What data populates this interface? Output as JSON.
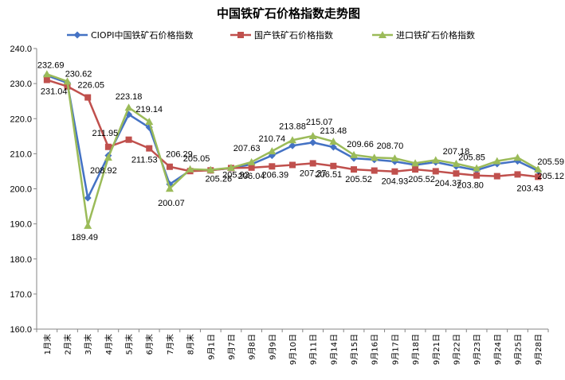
{
  "chart_data": {
    "type": "line",
    "title": "中国铁矿石价格指数走势图",
    "xlabel": "",
    "ylabel": "",
    "ylim": [
      160,
      240
    ],
    "y_ticks": [
      "160.0",
      "170.0",
      "180.0",
      "190.0",
      "200.0",
      "210.0",
      "220.0",
      "230.0",
      "240.0"
    ],
    "grid": "none",
    "legend_position": "top",
    "categories": [
      "1月末",
      "2月末",
      "3月末",
      "4月末",
      "5月末",
      "6月末",
      "7月末",
      "8月末",
      "9月1日",
      "9月7日",
      "9月8日",
      "9月9日",
      "9月10日",
      "9月11日",
      "9月14日",
      "9月15日",
      "9月16日",
      "9月17日",
      "9月18日",
      "9月21日",
      "9月22日",
      "9月23日",
      "9月24日",
      "9月25日",
      "9月28日"
    ],
    "series": [
      {
        "name": "CIOPI中国铁矿石价格指数",
        "color": "#4472C4",
        "marker": "diamond",
        "values": [
          232.3,
          230.2,
          197.4,
          209.5,
          221.2,
          217.5,
          201.3,
          205.2,
          205.3,
          205.9,
          207.0,
          209.5,
          212.3,
          213.2,
          211.9,
          208.7,
          208.3,
          207.8,
          206.8,
          207.6,
          206.4,
          205.3,
          207.1,
          207.9,
          205.12
        ]
      },
      {
        "name": "国产铁矿石价格指数",
        "color": "#C0504D",
        "marker": "square",
        "values": [
          231.04,
          229.2,
          226.05,
          211.95,
          214.0,
          211.53,
          206.29,
          205.05,
          205.26,
          205.92,
          206.04,
          206.39,
          206.8,
          207.27,
          206.51,
          205.52,
          205.2,
          204.93,
          205.52,
          205.0,
          204.37,
          203.8,
          203.6,
          204.1,
          203.43
        ]
      },
      {
        "name": "进口铁矿石价格指数",
        "color": "#9BBB59",
        "marker": "triangle",
        "values": [
          232.69,
          230.62,
          189.49,
          208.92,
          223.18,
          219.14,
          200.07,
          205.6,
          205.4,
          206.0,
          207.63,
          210.74,
          213.88,
          215.07,
          213.48,
          209.66,
          208.9,
          208.7,
          207.3,
          208.2,
          207.18,
          205.85,
          207.9,
          208.9,
          205.59
        ]
      }
    ],
    "data_labels": [
      {
        "text": "232.69",
        "series": 2,
        "index": 0
      },
      {
        "text": "231.04",
        "series": 1,
        "index": 0
      },
      {
        "text": "230.62",
        "series": 2,
        "index": 1
      },
      {
        "text": "226.05",
        "series": 1,
        "index": 2
      },
      {
        "text": "189.49",
        "series": 2,
        "index": 2
      },
      {
        "text": "211.95",
        "series": 1,
        "index": 3
      },
      {
        "text": "208.92",
        "series": 2,
        "index": 3
      },
      {
        "text": "223.18",
        "series": 2,
        "index": 4
      },
      {
        "text": "219.14",
        "series": 2,
        "index": 5
      },
      {
        "text": "211.53",
        "series": 1,
        "index": 5
      },
      {
        "text": "206.29",
        "series": 1,
        "index": 6
      },
      {
        "text": "200.07",
        "series": 2,
        "index": 6
      },
      {
        "text": "205.05",
        "series": 1,
        "index": 7
      },
      {
        "text": "205.26",
        "series": 1,
        "index": 8
      },
      {
        "text": "205.92",
        "series": 1,
        "index": 9
      },
      {
        "text": "207.63",
        "series": 2,
        "index": 10
      },
      {
        "text": "206.04",
        "series": 1,
        "index": 10
      },
      {
        "text": "210.74",
        "series": 2,
        "index": 11
      },
      {
        "text": "206.39",
        "series": 1,
        "index": 11
      },
      {
        "text": "213.88",
        "series": 2,
        "index": 12
      },
      {
        "text": "215.07",
        "series": 2,
        "index": 13
      },
      {
        "text": "207.27",
        "series": 1,
        "index": 13
      },
      {
        "text": "213.48",
        "series": 2,
        "index": 14
      },
      {
        "text": "206.51",
        "series": 1,
        "index": 14
      },
      {
        "text": "209.66",
        "series": 2,
        "index": 15
      },
      {
        "text": "205.52",
        "series": 1,
        "index": 15
      },
      {
        "text": "208.70",
        "series": 2,
        "index": 17
      },
      {
        "text": "204.93",
        "series": 1,
        "index": 17
      },
      {
        "text": "205.52",
        "series": 1,
        "index": 18
      },
      {
        "text": "204.37",
        "series": 1,
        "index": 20
      },
      {
        "text": "207.18",
        "series": 2,
        "index": 20
      },
      {
        "text": "205.85",
        "series": 2,
        "index": 21
      },
      {
        "text": "203.80",
        "series": 1,
        "index": 21
      },
      {
        "text": "205.59",
        "series": 2,
        "index": 24
      },
      {
        "text": "205.12",
        "series": 0,
        "index": 24
      },
      {
        "text": "203.43",
        "series": 1,
        "index": 24
      }
    ]
  }
}
